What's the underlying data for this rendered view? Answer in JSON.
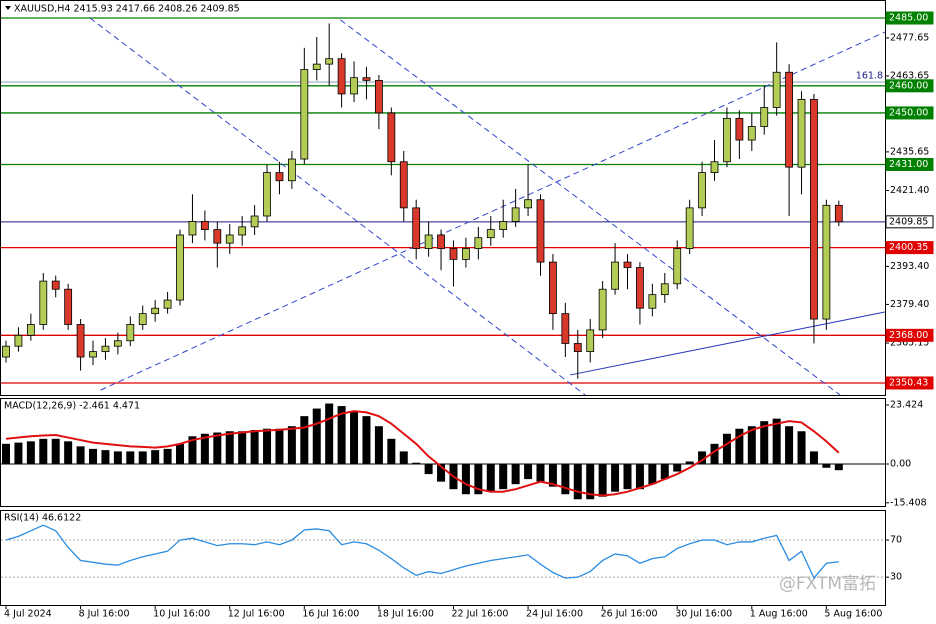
{
  "chart_data": [
    {
      "type": "candlestick",
      "title": "XAUUSD,H4  2415.93 2417.66 2408.26 2409.85",
      "categories": [
        "4 Jul 2024",
        null,
        null,
        null,
        null,
        null,
        "8 Jul 16:00",
        null,
        null,
        null,
        null,
        null,
        "10 Jul 16:00",
        null,
        null,
        null,
        null,
        null,
        "12 Jul 16:00",
        null,
        null,
        null,
        null,
        null,
        "16 Jul 16:00",
        null,
        null,
        null,
        null,
        null,
        "18 Jul 16:00",
        null,
        null,
        null,
        null,
        null,
        "22 Jul 16:00",
        null,
        null,
        null,
        null,
        null,
        "24 Jul 16:00",
        null,
        null,
        null,
        null,
        null,
        "26 Jul 16:00",
        null,
        null,
        null,
        null,
        null,
        "30 Jul 16:00",
        null,
        null,
        null,
        null,
        null,
        "1 Aug 16:00",
        null,
        null,
        null,
        null,
        null,
        "5 Aug 16:00",
        null
      ],
      "open": [
        2360,
        2364,
        2368,
        2372,
        2388,
        2385,
        2372,
        2360,
        2362,
        2364,
        2366,
        2372,
        2376,
        2378,
        2381,
        2405,
        2410,
        2407,
        2402,
        2405,
        2408,
        2412,
        2428,
        2425,
        2433,
        2466,
        2468,
        2470,
        2457,
        2463,
        2462,
        2450,
        2432,
        2415,
        2400,
        2405,
        2400,
        2396,
        2400,
        2404,
        2407,
        2410,
        2415,
        2418,
        2395,
        2376,
        2365,
        2362,
        2370,
        2385,
        2395,
        2393,
        2378,
        2383,
        2387,
        2400,
        2415,
        2428,
        2432,
        2448,
        2440,
        2445,
        2452,
        2465,
        2430,
        2455,
        2374,
        2415.93
      ],
      "high": [
        2366,
        2371,
        2376,
        2391,
        2390,
        2387,
        2374,
        2366,
        2367,
        2369,
        2375,
        2379,
        2381,
        2384,
        2407,
        2420,
        2414,
        2410,
        2409,
        2412,
        2416,
        2431,
        2432,
        2436,
        2474,
        2478,
        2483,
        2472,
        2469,
        2467,
        2464,
        2452,
        2436,
        2418,
        2410,
        2407,
        2403,
        2404,
        2408,
        2412,
        2418,
        2422,
        2431,
        2420,
        2398,
        2380,
        2370,
        2374,
        2388,
        2402,
        2398,
        2395,
        2387,
        2391,
        2403,
        2418,
        2432,
        2440,
        2452,
        2451,
        2450,
        2460,
        2476,
        2468,
        2458,
        2457,
        2418,
        2417.66
      ],
      "low": [
        2358,
        2362,
        2366,
        2370,
        2382,
        2370,
        2355,
        2357,
        2359,
        2361,
        2364,
        2370,
        2373,
        2376,
        2379,
        2402,
        2403,
        2393,
        2398,
        2401,
        2405,
        2410,
        2420,
        2422,
        2431,
        2462,
        2460,
        2452,
        2454,
        2455,
        2444,
        2427,
        2410,
        2396,
        2397,
        2392,
        2386,
        2393,
        2396,
        2401,
        2404,
        2408,
        2412,
        2390,
        2370,
        2360,
        2352,
        2358,
        2367,
        2383,
        2385,
        2372,
        2375,
        2380,
        2385,
        2398,
        2412,
        2425,
        2430,
        2433,
        2436,
        2442,
        2449,
        2412,
        2420,
        2365,
        2370,
        2408.26
      ],
      "close": [
        2364,
        2368,
        2372,
        2388,
        2385,
        2372,
        2360,
        2362,
        2364,
        2366,
        2372,
        2376,
        2378,
        2381,
        2405,
        2410,
        2407,
        2402,
        2405,
        2408,
        2412,
        2428,
        2425,
        2433,
        2466,
        2468,
        2470,
        2457,
        2463,
        2462,
        2450,
        2432,
        2415,
        2400,
        2405,
        2400,
        2396,
        2400,
        2404,
        2407,
        2410,
        2415,
        2418,
        2395,
        2376,
        2365,
        2362,
        2370,
        2385,
        2395,
        2393,
        2378,
        2383,
        2387,
        2400,
        2415,
        2428,
        2432,
        2448,
        2440,
        2445,
        2452,
        2465,
        2430,
        2455,
        2374,
        2415.93,
        2409.85
      ],
      "up_color": "#b3cc55",
      "down_color": "#d8392b",
      "ylim": [
        2346.0,
        2491.64
      ],
      "yticks": [
        2477.65,
        2463.65,
        2435.65,
        {
          "value": 2421.4,
          "label": "2421.40"
        },
        {
          "value": 2393.4,
          "label": "2393.40"
        },
        {
          "value": 2379.4,
          "label": "2379.40"
        },
        2365.15
      ],
      "levels": [
        {
          "value": 2485,
          "label": "2485.00",
          "color": "#008000"
        },
        {
          "value": 2461.4,
          "label": "161.8",
          "color": "#9aa0b8",
          "style": "fib"
        },
        {
          "value": 2460,
          "label": "2460.00",
          "color": "#008000"
        },
        {
          "value": 2450,
          "label": "2450.00",
          "color": "#008000"
        },
        {
          "value": 2431,
          "label": "2431.00",
          "color": "#008000"
        },
        {
          "value": 2409.85,
          "label": "2409.85",
          "color": "#1a1a80",
          "style": "price"
        },
        {
          "value": 2400.35,
          "label": "2400.35",
          "color": "#e00000"
        },
        {
          "value": 2368,
          "label": "2368.00",
          "color": "#e00000"
        },
        {
          "value": 2350.43,
          "label": "2350.43",
          "color": "#e00000"
        }
      ],
      "trendlines": [
        {
          "x": [
            6.76,
            46.6
          ],
          "y": [
            2485,
            2346
          ],
          "color": "#3344cc",
          "dash": true
        },
        {
          "x": [
            26.9,
            67.1
          ],
          "y": [
            2484.3,
            2346
          ],
          "color": "#3344cc",
          "dash": true
        },
        {
          "x": [
            7.6,
            70.7
          ],
          "y": [
            2347.8,
            2479.8
          ],
          "color": "#3344cc",
          "dash": true
        },
        {
          "x": [
            45.4,
            70.7
          ],
          "y": [
            2353.4,
            2376.6
          ],
          "color": "#2233bb",
          "dash": false
        }
      ]
    },
    {
      "type": "macd",
      "title": "MACD(12,26,9) -2.461 4.471",
      "series": [
        {
          "kind": "bar",
          "color": "#000000",
          "values": [
            8,
            8.5,
            9,
            10,
            10,
            9,
            7,
            6,
            5.5,
            5,
            5,
            5,
            5.5,
            6,
            8,
            11,
            12,
            12.5,
            13,
            13,
            13.5,
            14,
            14,
            15,
            19,
            22,
            24,
            23,
            21,
            19,
            15,
            10,
            5,
            0.5,
            -4,
            -7,
            -10,
            -12,
            -12,
            -11,
            -10,
            -8,
            -6,
            -7,
            -9,
            -12,
            -14,
            -14,
            -13,
            -11,
            -10,
            -10,
            -8,
            -6,
            -3,
            1,
            5,
            8,
            12,
            14,
            15,
            17,
            18,
            15,
            13,
            5,
            -1.5,
            -2.461
          ]
        },
        {
          "kind": "line",
          "color": "#e01010",
          "values": [
            10,
            10.5,
            11,
            11.3,
            11.5,
            10.5,
            9.5,
            8.5,
            8,
            7.5,
            7,
            6.8,
            6.5,
            7,
            8,
            9.5,
            10.5,
            11.3,
            12,
            12.5,
            13,
            13.3,
            13.6,
            14,
            14.5,
            16,
            18,
            20,
            21,
            20.5,
            19,
            16,
            12,
            8,
            3,
            -1,
            -5,
            -8,
            -10,
            -11,
            -11,
            -10,
            -8.5,
            -7,
            -8,
            -9.5,
            -11,
            -12,
            -12.5,
            -12,
            -11,
            -9.5,
            -8,
            -6,
            -4,
            -1.5,
            1.5,
            5,
            8,
            11,
            13.5,
            15,
            16,
            17,
            16.5,
            13,
            9,
            4.471
          ]
        }
      ],
      "ylim": [
        -17.07,
        26.2
      ],
      "yticks": [
        23.424,
        {
          "value": 0,
          "label": "0.00"
        },
        -15.408
      ],
      "zero_line": true
    },
    {
      "type": "line",
      "title": "RSI(14) 46.6122",
      "color": "#2a8ce0",
      "values": [
        70,
        74,
        80,
        86,
        80,
        62,
        48,
        46,
        44,
        43,
        48,
        52,
        55,
        58,
        70,
        72,
        68,
        64,
        66,
        66,
        65,
        68,
        65,
        70,
        81,
        82,
        80,
        65,
        68,
        66,
        59,
        50,
        40,
        32,
        36,
        34,
        38,
        42,
        45,
        48,
        50,
        52,
        54,
        44,
        35,
        29,
        30,
        36,
        48,
        55,
        53,
        45,
        50,
        52,
        61,
        66,
        70,
        70,
        65,
        68,
        68,
        72,
        75,
        48,
        58,
        29,
        45,
        46.6122
      ],
      "ylim": [
        0,
        102.4
      ],
      "yticks": [
        70,
        30
      ],
      "grid": "dotted",
      "watermark": "@FXTM富拓"
    }
  ]
}
